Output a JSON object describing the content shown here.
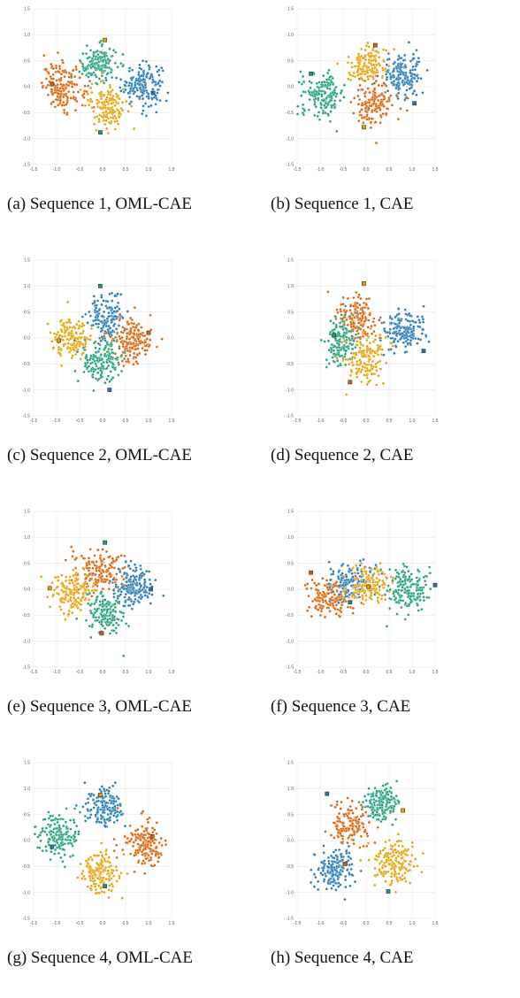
{
  "colors": {
    "blue": "#1f77b4",
    "orange": "#d95f02",
    "yellow": "#e69f00",
    "green": "#1b9e77"
  },
  "chart_data": [
    {
      "type": "scatter",
      "caption": "(a) Sequence 1, OML-CAE",
      "xlim": [
        -1.5,
        1.5
      ],
      "ylim": [
        -1.5,
        1.5
      ],
      "grid": true,
      "xticks": [
        "-1.5",
        "-1.0",
        "-0.5",
        "0.0",
        "0.5",
        "1.0",
        "1.5"
      ],
      "yticks": [
        "1.5",
        "1.0",
        "0.5",
        "0.0",
        "-0.5",
        "-1.0",
        "-1.5"
      ],
      "clusters": [
        {
          "color": "blue",
          "center": [
            0.85,
            0.05
          ],
          "spread": [
            0.22,
            0.2
          ],
          "count": 170
        },
        {
          "color": "orange",
          "center": [
            -0.85,
            0.0
          ],
          "spread": [
            0.22,
            0.22
          ],
          "count": 170
        },
        {
          "color": "green",
          "center": [
            -0.1,
            0.42
          ],
          "spread": [
            0.2,
            0.18
          ],
          "count": 150
        },
        {
          "color": "yellow",
          "center": [
            0.1,
            -0.35
          ],
          "spread": [
            0.2,
            0.22
          ],
          "count": 150
        }
      ],
      "markers": [
        {
          "color": "yellow",
          "x": 0.05,
          "y": 0.9
        },
        {
          "color": "blue",
          "x": 1.1,
          "y": -0.12
        },
        {
          "color": "green",
          "x": -0.05,
          "y": -0.88
        },
        {
          "color": "orange",
          "x": -1.1,
          "y": 0.05
        }
      ]
    },
    {
      "type": "scatter",
      "caption": "(b) Sequence 1, CAE",
      "xlim": [
        -1.5,
        1.5
      ],
      "ylim": [
        -1.5,
        1.5
      ],
      "grid": true,
      "xticks": [
        "-1.5",
        "-1.0",
        "-0.5",
        "0.0",
        "0.5",
        "1.0",
        "1.5"
      ],
      "yticks": [
        "1.5",
        "1.0",
        "0.5",
        "0.0",
        "-0.5",
        "-1.0",
        "-1.5"
      ],
      "clusters": [
        {
          "color": "green",
          "center": [
            -0.95,
            -0.15
          ],
          "spread": [
            0.25,
            0.2
          ],
          "count": 170
        },
        {
          "color": "yellow",
          "center": [
            0.0,
            0.42
          ],
          "spread": [
            0.2,
            0.18
          ],
          "count": 150
        },
        {
          "color": "blue",
          "center": [
            0.8,
            0.2
          ],
          "spread": [
            0.22,
            0.2
          ],
          "count": 170
        },
        {
          "color": "orange",
          "center": [
            0.15,
            -0.35
          ],
          "spread": [
            0.2,
            0.2
          ],
          "count": 150
        }
      ],
      "markers": [
        {
          "color": "orange",
          "x": 0.2,
          "y": 0.8
        },
        {
          "color": "green",
          "x": -1.2,
          "y": 0.25
        },
        {
          "color": "yellow",
          "x": -0.05,
          "y": -0.78
        },
        {
          "color": "blue",
          "x": 1.05,
          "y": -0.32
        }
      ]
    },
    {
      "type": "scatter",
      "caption": "(c) Sequence 2, OML-CAE",
      "xlim": [
        -1.5,
        1.5
      ],
      "ylim": [
        -1.5,
        1.5
      ],
      "grid": true,
      "xticks": [
        "-1.5",
        "-1.0",
        "-0.5",
        "0.0",
        "0.5",
        "1.0",
        "1.5"
      ],
      "yticks": [
        "1.5",
        "1.0",
        "0.5",
        "0.0",
        "-0.5",
        "-1.0",
        "-1.5"
      ],
      "clusters": [
        {
          "color": "blue",
          "center": [
            0.1,
            0.4
          ],
          "spread": [
            0.2,
            0.22
          ],
          "count": 150
        },
        {
          "color": "yellow",
          "center": [
            -0.65,
            0.0
          ],
          "spread": [
            0.2,
            0.2
          ],
          "count": 150
        },
        {
          "color": "orange",
          "center": [
            0.65,
            -0.05
          ],
          "spread": [
            0.22,
            0.2
          ],
          "count": 170
        },
        {
          "color": "green",
          "center": [
            -0.05,
            -0.45
          ],
          "spread": [
            0.22,
            0.2
          ],
          "count": 160
        }
      ],
      "markers": [
        {
          "color": "green",
          "x": -0.05,
          "y": 1.0
        },
        {
          "color": "yellow",
          "x": -0.95,
          "y": -0.05
        },
        {
          "color": "orange",
          "x": 1.0,
          "y": 0.1
        },
        {
          "color": "blue",
          "x": 0.15,
          "y": -1.0
        }
      ]
    },
    {
      "type": "scatter",
      "caption": "(d) Sequence 2, CAE",
      "xlim": [
        -1.5,
        1.5
      ],
      "ylim": [
        -1.5,
        1.5
      ],
      "grid": true,
      "xticks": [
        "-1.5",
        "-1.0",
        "-0.5",
        "0.0",
        "0.5",
        "1.0",
        "1.5"
      ],
      "yticks": [
        "1.5",
        "1.0",
        "0.5",
        "0.0",
        "-0.5",
        "-1.0",
        "-1.5"
      ],
      "clusters": [
        {
          "color": "orange",
          "center": [
            -0.2,
            0.35
          ],
          "spread": [
            0.22,
            0.25
          ],
          "count": 160
        },
        {
          "color": "green",
          "center": [
            -0.55,
            -0.05
          ],
          "spread": [
            0.18,
            0.25
          ],
          "count": 150
        },
        {
          "color": "blue",
          "center": [
            0.8,
            0.15
          ],
          "spread": [
            0.22,
            0.2
          ],
          "count": 170
        },
        {
          "color": "yellow",
          "center": [
            0.0,
            -0.4
          ],
          "spread": [
            0.22,
            0.22
          ],
          "count": 150
        }
      ],
      "markers": [
        {
          "color": "yellow",
          "x": -0.05,
          "y": 1.05
        },
        {
          "color": "green",
          "x": -0.7,
          "y": 0.05
        },
        {
          "color": "blue",
          "x": 1.25,
          "y": -0.25
        },
        {
          "color": "orange",
          "x": -0.35,
          "y": -0.85
        }
      ]
    },
    {
      "type": "scatter",
      "caption": "(e) Sequence 3, OML-CAE",
      "xlim": [
        -1.5,
        1.5
      ],
      "ylim": [
        -1.5,
        1.5
      ],
      "grid": true,
      "xticks": [
        "-1.5",
        "-1.0",
        "-0.5",
        "0.0",
        "0.5",
        "1.0",
        "1.5"
      ],
      "yticks": [
        "1.5",
        "1.0",
        "0.5",
        "0.0",
        "-0.5",
        "-1.0",
        "-1.5"
      ],
      "clusters": [
        {
          "color": "orange",
          "center": [
            -0.05,
            0.35
          ],
          "spread": [
            0.28,
            0.2
          ],
          "count": 170
        },
        {
          "color": "yellow",
          "center": [
            -0.65,
            -0.05
          ],
          "spread": [
            0.22,
            0.2
          ],
          "count": 150
        },
        {
          "color": "blue",
          "center": [
            0.65,
            0.05
          ],
          "spread": [
            0.22,
            0.2
          ],
          "count": 170
        },
        {
          "color": "green",
          "center": [
            0.05,
            -0.45
          ],
          "spread": [
            0.22,
            0.2
          ],
          "count": 150
        }
      ],
      "markers": [
        {
          "color": "green",
          "x": 0.05,
          "y": 0.9
        },
        {
          "color": "yellow",
          "x": -1.15,
          "y": 0.02
        },
        {
          "color": "blue",
          "x": 1.05,
          "y": 0.0
        },
        {
          "color": "orange",
          "x": -0.02,
          "y": -0.85
        }
      ]
    },
    {
      "type": "scatter",
      "caption": "(f) Sequence 3, CAE",
      "xlim": [
        -1.5,
        1.5
      ],
      "ylim": [
        -1.5,
        1.5
      ],
      "grid": true,
      "xticks": [
        "-1.5",
        "-1.0",
        "-0.5",
        "0.0",
        "0.5",
        "1.0",
        "1.5"
      ],
      "yticks": [
        "1.5",
        "1.0",
        "0.5",
        "0.0",
        "-0.5",
        "-1.0",
        "-1.5"
      ],
      "clusters": [
        {
          "color": "orange",
          "center": [
            -0.8,
            -0.15
          ],
          "spread": [
            0.22,
            0.2
          ],
          "count": 160
        },
        {
          "color": "blue",
          "center": [
            -0.3,
            0.15
          ],
          "spread": [
            0.25,
            0.18
          ],
          "count": 150
        },
        {
          "color": "yellow",
          "center": [
            0.05,
            0.05
          ],
          "spread": [
            0.22,
            0.18
          ],
          "count": 140
        },
        {
          "color": "green",
          "center": [
            0.9,
            0.0
          ],
          "spread": [
            0.25,
            0.2
          ],
          "count": 170
        }
      ],
      "markers": [
        {
          "color": "orange",
          "x": -1.2,
          "y": 0.32
        },
        {
          "color": "blue",
          "x": -0.35,
          "y": -0.25
        },
        {
          "color": "blue",
          "x": 1.5,
          "y": 0.08
        },
        {
          "color": "yellow",
          "x": 0.05,
          "y": 0.05
        }
      ]
    },
    {
      "type": "scatter",
      "caption": "(g) Sequence 4, OML-CAE",
      "xlim": [
        -1.5,
        1.5
      ],
      "ylim": [
        -1.5,
        1.5
      ],
      "grid": true,
      "xticks": [
        "-1.5",
        "-1.0",
        "-0.5",
        "0.0",
        "0.5",
        "1.0",
        "1.5"
      ],
      "yticks": [
        "1.5",
        "1.0",
        "0.5",
        "0.0",
        "-0.5",
        "-1.0",
        "-1.5"
      ],
      "clusters": [
        {
          "color": "blue",
          "center": [
            0.05,
            0.65
          ],
          "spread": [
            0.22,
            0.2
          ],
          "count": 160
        },
        {
          "color": "green",
          "center": [
            -0.95,
            0.1
          ],
          "spread": [
            0.22,
            0.2
          ],
          "count": 160
        },
        {
          "color": "orange",
          "center": [
            0.9,
            -0.05
          ],
          "spread": [
            0.22,
            0.22
          ],
          "count": 170
        },
        {
          "color": "yellow",
          "center": [
            -0.05,
            -0.65
          ],
          "spread": [
            0.2,
            0.2
          ],
          "count": 150
        }
      ],
      "markers": [
        {
          "color": "yellow",
          "x": -0.05,
          "y": 0.88
        },
        {
          "color": "blue",
          "x": -1.1,
          "y": -0.12
        },
        {
          "color": "orange",
          "x": 1.08,
          "y": 0.08
        },
        {
          "color": "green",
          "x": 0.05,
          "y": -0.88
        }
      ]
    },
    {
      "type": "scatter",
      "caption": "(h) Sequence 4, CAE",
      "xlim": [
        -1.5,
        1.5
      ],
      "ylim": [
        -1.5,
        1.5
      ],
      "grid": true,
      "xticks": [
        "-1.5",
        "-1.0",
        "-0.5",
        "0.0",
        "0.5",
        "1.0",
        "1.5"
      ],
      "yticks": [
        "1.5",
        "1.0",
        "0.5",
        "0.0",
        "-0.5",
        "-1.0",
        "-1.5"
      ],
      "clusters": [
        {
          "color": "green",
          "center": [
            0.35,
            0.7
          ],
          "spread": [
            0.2,
            0.18
          ],
          "count": 150
        },
        {
          "color": "orange",
          "center": [
            -0.35,
            0.3
          ],
          "spread": [
            0.2,
            0.2
          ],
          "count": 150
        },
        {
          "color": "blue",
          "center": [
            -0.7,
            -0.55
          ],
          "spread": [
            0.22,
            0.2
          ],
          "count": 160
        },
        {
          "color": "yellow",
          "center": [
            0.6,
            -0.45
          ],
          "spread": [
            0.22,
            0.22
          ],
          "count": 170
        }
      ],
      "markers": [
        {
          "color": "blue",
          "x": -0.85,
          "y": 0.9
        },
        {
          "color": "yellow",
          "x": 0.8,
          "y": 0.58
        },
        {
          "color": "orange",
          "x": -0.45,
          "y": -0.45
        },
        {
          "color": "green",
          "x": 0.48,
          "y": -0.98
        }
      ]
    }
  ]
}
